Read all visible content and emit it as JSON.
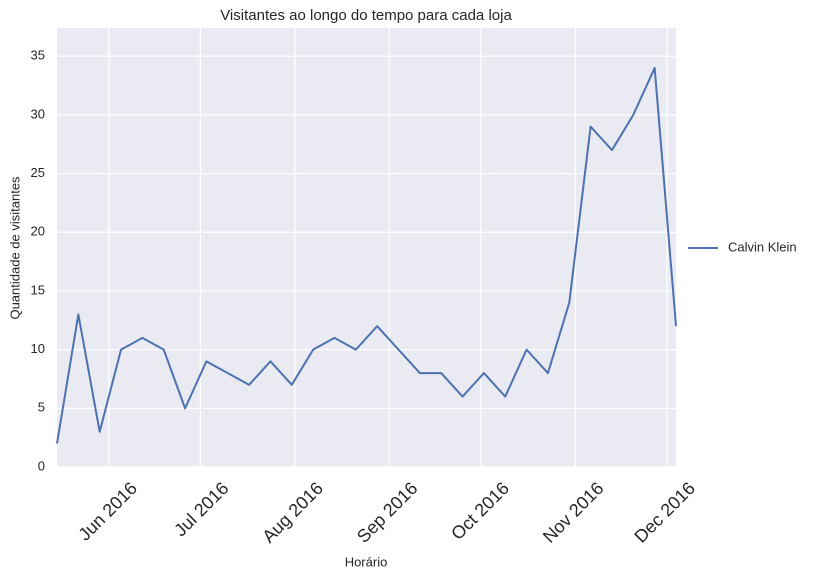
{
  "chart_data": {
    "type": "line",
    "title": "Visitantes ao longo do tempo para cada loja",
    "x_label": "Horário",
    "y_label": "Quantidade de visitantes",
    "x": [
      "2016-05-15",
      "2016-05-22",
      "2016-05-29",
      "2016-06-05",
      "2016-06-12",
      "2016-06-19",
      "2016-06-26",
      "2016-07-03",
      "2016-07-10",
      "2016-07-17",
      "2016-07-24",
      "2016-07-31",
      "2016-08-07",
      "2016-08-14",
      "2016-08-21",
      "2016-08-28",
      "2016-09-04",
      "2016-09-11",
      "2016-09-18",
      "2016-09-25",
      "2016-10-02",
      "2016-10-09",
      "2016-10-16",
      "2016-10-23",
      "2016-10-30",
      "2016-11-06",
      "2016-11-13",
      "2016-11-20",
      "2016-11-27",
      "2016-12-04"
    ],
    "series": [
      {
        "name": "Calvin Klein",
        "color": "#4c72b0",
        "values": [
          2,
          13,
          3,
          10,
          11,
          10,
          5,
          9,
          8,
          7,
          9,
          7,
          10,
          11,
          10,
          12,
          10,
          8,
          8,
          6,
          8,
          6,
          10,
          8,
          14,
          29,
          27,
          30,
          34,
          12
        ]
      }
    ],
    "xlim": [
      "2016-05-15",
      "2016-12-04"
    ],
    "xticks": [
      {
        "value": "2016-06-01",
        "label": "Jun 2016"
      },
      {
        "value": "2016-07-01",
        "label": "Jul 2016"
      },
      {
        "value": "2016-08-01",
        "label": "Aug 2016"
      },
      {
        "value": "2016-09-01",
        "label": "Sep 2016"
      },
      {
        "value": "2016-10-01",
        "label": "Oct 2016"
      },
      {
        "value": "2016-11-01",
        "label": "Nov 2016"
      },
      {
        "value": "2016-12-01",
        "label": "Dec 2016"
      }
    ],
    "ylim": [
      0,
      37.4
    ],
    "yticks": [
      0,
      5,
      10,
      15,
      20,
      25,
      30,
      35
    ],
    "grid": true,
    "legend": "right",
    "background": "#eaeaf2"
  }
}
